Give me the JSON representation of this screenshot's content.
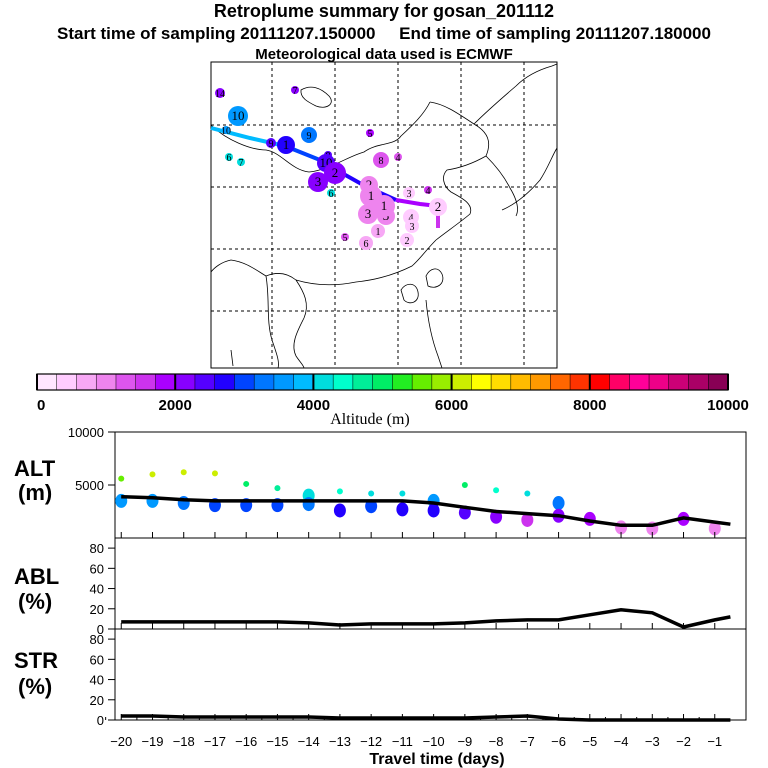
{
  "header": {
    "title": "Retroplume summary for gosan_201112",
    "start_label": "Start time of sampling 20111207.150000",
    "end_label": "End time of sampling 20111207.180000",
    "met_label": "Meteorological data used is ECMWF"
  },
  "colorbar": {
    "title": "Altitude (m)",
    "tick_labels": [
      "0",
      "2000",
      "4000",
      "6000",
      "8000",
      "10000"
    ],
    "colors": [
      "#ffe6ff",
      "#ffccff",
      "#f7a8f5",
      "#ee84ee",
      "#dd55ee",
      "#cc33ee",
      "#aa00ff",
      "#8800ff",
      "#5500ff",
      "#2200ff",
      "#0044ff",
      "#0077ff",
      "#0099ff",
      "#00bbff",
      "#00dddd",
      "#00ffcc",
      "#00ee99",
      "#00ee66",
      "#22ee22",
      "#66ee00",
      "#99ee00",
      "#ccee00",
      "#ffff00",
      "#ffdd00",
      "#ffbb00",
      "#ff9900",
      "#ff6600",
      "#ff3300",
      "#ff0000",
      "#ff0066",
      "#ff0099",
      "#ee0088",
      "#cc0077",
      "#aa0066",
      "#880055"
    ]
  },
  "map": {
    "markers": [
      "14",
      "7",
      "10",
      "10",
      "9",
      "9",
      "1",
      "8",
      "10",
      "6",
      "7",
      "5",
      "4",
      "8",
      "6",
      "3",
      "2",
      "4",
      "2",
      "3",
      "1",
      "3",
      "1",
      "2",
      "3",
      "6",
      "5",
      "1",
      "4",
      "3",
      "2"
    ]
  },
  "panels": {
    "alt_label": [
      "ALT",
      "(m)"
    ],
    "abl_label": [
      "ABL",
      "(%)"
    ],
    "str_label": [
      "STR",
      "(%)"
    ],
    "alt_ticks": [
      "10000",
      "5000"
    ],
    "pct_ticks": [
      "80",
      "60",
      "40",
      "20",
      "0"
    ]
  },
  "x_axis": {
    "title": "Travel time (days)",
    "tick_labels": [
      "−20",
      "−19",
      "−18",
      "−17",
      "−16",
      "−15",
      "−14",
      "−13",
      "−12",
      "−11",
      "−10",
      "−9",
      "−8",
      "−7",
      "−6",
      "−5",
      "−4",
      "−3",
      "−2",
      "−1"
    ]
  },
  "chart_data": [
    {
      "type": "line",
      "title": "ALT",
      "ylabel": "(m)",
      "xlabel": "Travel time (days)",
      "ylim": [
        0,
        10000
      ],
      "x": [
        -20,
        -19,
        -18,
        -17,
        -16,
        -15,
        -14,
        -13,
        -12,
        -11,
        -10,
        -9,
        -8,
        -7,
        -6,
        -5,
        -4,
        -3,
        -2,
        -1,
        -0.5
      ],
      "series": [
        {
          "name": "mean altitude",
          "values": [
            3900,
            3800,
            3600,
            3500,
            3500,
            3500,
            3500,
            3500,
            3500,
            3500,
            3300,
            2900,
            2500,
            2300,
            2100,
            1600,
            1200,
            1200,
            1900,
            1500,
            1300
          ]
        },
        {
          "name": "cluster altitudes",
          "points": [
            [
              -20,
              5600
            ],
            [
              -20,
              3500
            ],
            [
              -19,
              6000
            ],
            [
              -19,
              3500
            ],
            [
              -18,
              6200
            ],
            [
              -18,
              3300
            ],
            [
              -17,
              6100
            ],
            [
              -17,
              3100
            ],
            [
              -16,
              5100
            ],
            [
              -16,
              3100
            ],
            [
              -15,
              4700
            ],
            [
              -15,
              3100
            ],
            [
              -14,
              4000
            ],
            [
              -14,
              3200
            ],
            [
              -13,
              4400
            ],
            [
              -13,
              2600
            ],
            [
              -12,
              4200
            ],
            [
              -12,
              3000
            ],
            [
              -11,
              4200
            ],
            [
              -11,
              2700
            ],
            [
              -10,
              3500
            ],
            [
              -10,
              2600
            ],
            [
              -9,
              5000
            ],
            [
              -9,
              2400
            ],
            [
              -8,
              4500
            ],
            [
              -8,
              2000
            ],
            [
              -7,
              4200
            ],
            [
              -7,
              1700
            ],
            [
              -6,
              3300
            ],
            [
              -6,
              2100
            ],
            [
              -5,
              1800
            ],
            [
              -4,
              1000
            ],
            [
              -3,
              900
            ],
            [
              -2,
              1800
            ],
            [
              -1,
              900
            ]
          ]
        }
      ]
    },
    {
      "type": "line",
      "title": "ABL",
      "ylabel": "(%)",
      "xlabel": "Travel time (days)",
      "ylim": [
        0,
        90
      ],
      "x": [
        -20,
        -19,
        -18,
        -17,
        -16,
        -15,
        -14,
        -13,
        -12,
        -11,
        -10,
        -9,
        -8,
        -7,
        -6,
        -5,
        -4,
        -3,
        -2,
        -1,
        -0.5
      ],
      "series": [
        {
          "name": "ABL fraction",
          "values": [
            7,
            7,
            7,
            7,
            7,
            7,
            6,
            4,
            5,
            5,
            5,
            6,
            8,
            9,
            9,
            14,
            19,
            16,
            2,
            9,
            12
          ]
        }
      ]
    },
    {
      "type": "line",
      "title": "STR",
      "ylabel": "(%)",
      "xlabel": "Travel time (days)",
      "ylim": [
        0,
        90
      ],
      "x": [
        -20,
        -19,
        -18,
        -17,
        -16,
        -15,
        -14,
        -13,
        -12,
        -11,
        -10,
        -9,
        -8,
        -7,
        -6,
        -5,
        -4,
        -3,
        -2,
        -1,
        -0.5
      ],
      "series": [
        {
          "name": "stratospheric fraction",
          "values": [
            4,
            4,
            3,
            3,
            3,
            3,
            3,
            2,
            2,
            2,
            2,
            2,
            3,
            4,
            1,
            0,
            0,
            0,
            0,
            0,
            0
          ]
        }
      ]
    }
  ]
}
